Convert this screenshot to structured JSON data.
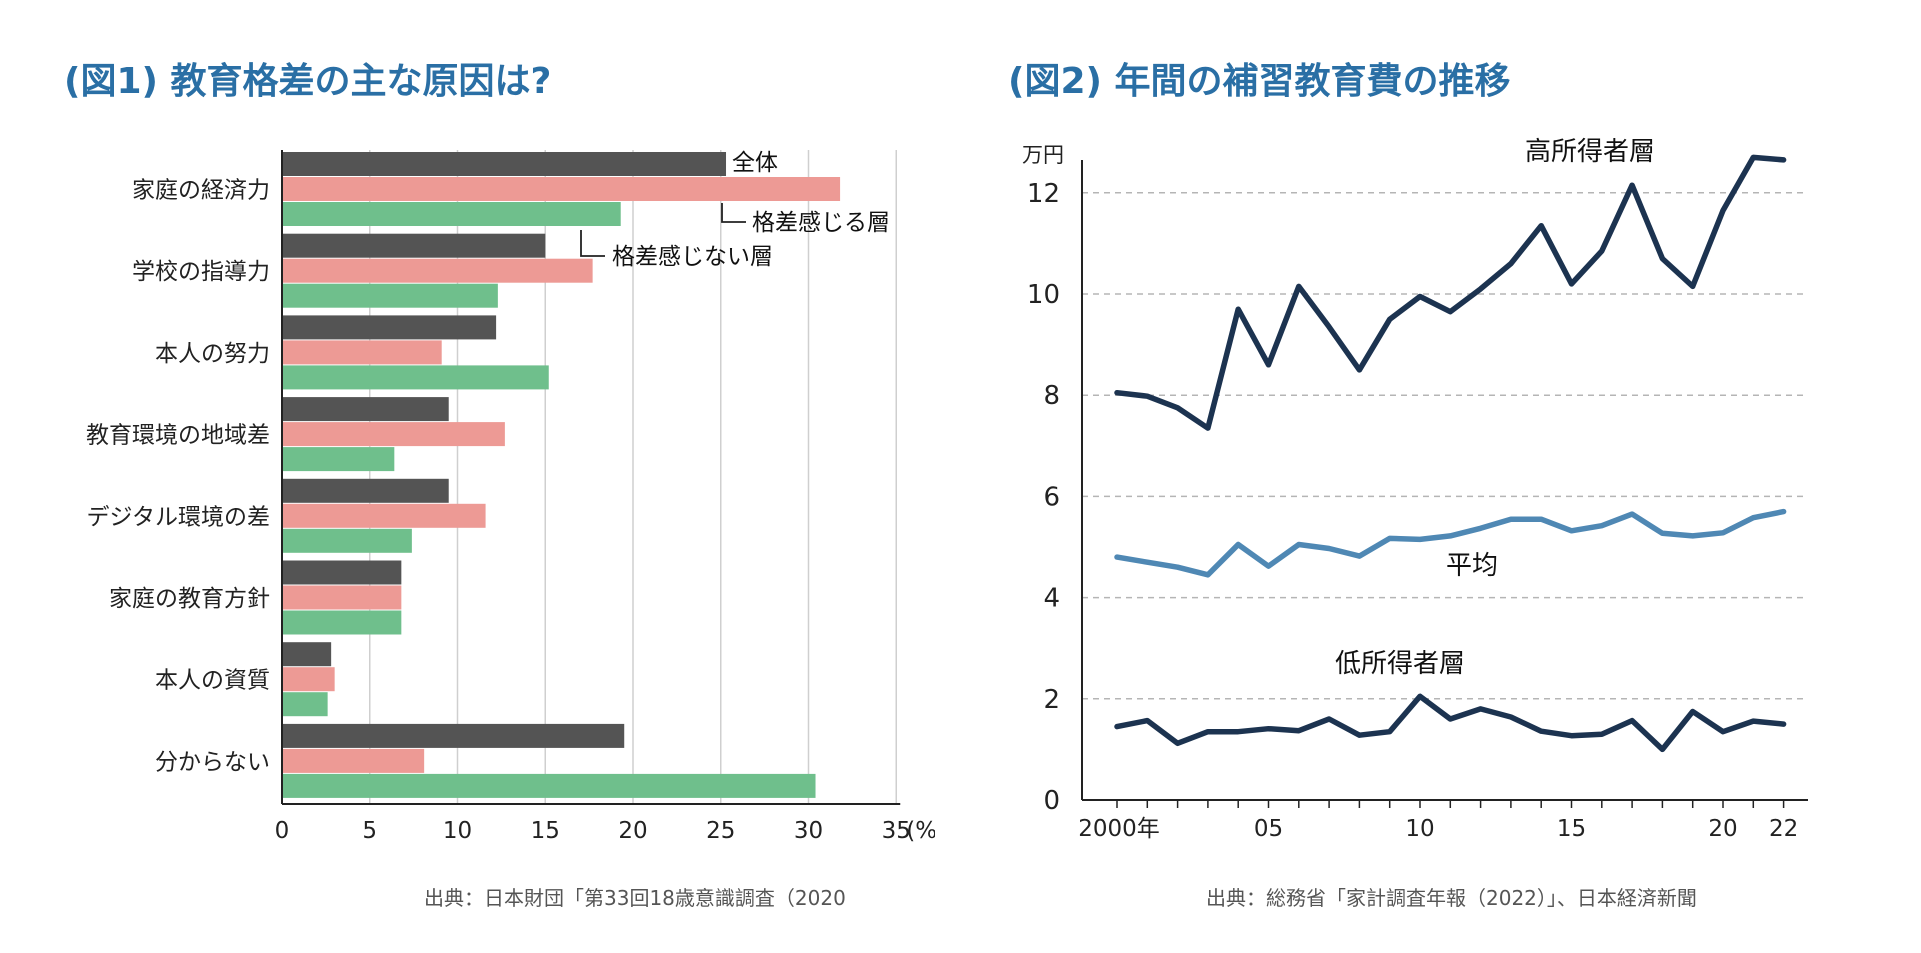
{
  "fig1": {
    "title": "(図1) 教育格差の主な原因は?",
    "source": "出典：日本財団「第33回18歳意識調査（2020",
    "unit_label": "(%",
    "chart_data": {
      "type": "bar",
      "orientation": "horizontal",
      "categories": [
        "家庭の経済力",
        "学校の指導力",
        "本人の努力",
        "教育環境の地域差",
        "デジタル環境の差",
        "家庭の教育方針",
        "本人の資質",
        "分からない"
      ],
      "series": [
        {
          "name": "全体",
          "color": "#545454",
          "values": [
            25.3,
            15.0,
            12.2,
            9.5,
            9.5,
            6.8,
            2.8,
            19.5
          ]
        },
        {
          "name": "格差感じる層",
          "color": "#ed9a95",
          "values": [
            31.8,
            17.7,
            9.1,
            12.7,
            11.6,
            6.8,
            3.0,
            8.1
          ]
        },
        {
          "name": "格差感じない層",
          "color": "#6fbf8c",
          "values": [
            19.3,
            12.3,
            15.2,
            6.4,
            7.4,
            6.8,
            2.6,
            30.4
          ]
        }
      ],
      "xlim": [
        0,
        35
      ],
      "xticks": [
        0,
        5,
        10,
        15,
        20,
        25,
        30,
        35
      ],
      "xtick_labels": [
        "0",
        "5",
        "10",
        "15",
        "20",
        "25",
        "30",
        "35"
      ],
      "grid": true
    }
  },
  "fig2": {
    "title": "(図2) 年間の補習教育費の推移",
    "source": "出典：総務省「家計調査年報（2022）」、日本経済新聞",
    "ylabel": "万円",
    "chart_data": {
      "type": "line",
      "x": [
        2000,
        2001,
        2002,
        2003,
        2004,
        2005,
        2006,
        2007,
        2008,
        2009,
        2010,
        2011,
        2012,
        2013,
        2014,
        2015,
        2016,
        2017,
        2018,
        2019,
        2020,
        2021,
        2022
      ],
      "series": [
        {
          "name": "高所得者層",
          "color": "#1c3350",
          "values": [
            8.05,
            7.98,
            7.75,
            7.35,
            9.7,
            8.6,
            10.15,
            9.35,
            8.5,
            9.5,
            9.95,
            9.65,
            10.1,
            10.6,
            11.35,
            10.2,
            10.85,
            12.15,
            10.7,
            10.15,
            11.65,
            12.7,
            12.65
          ]
        },
        {
          "name": "平均",
          "color": "#4f88b4",
          "values": [
            4.8,
            4.7,
            4.6,
            4.45,
            5.05,
            4.62,
            5.05,
            4.97,
            4.82,
            5.17,
            5.15,
            5.22,
            5.37,
            5.55,
            5.55,
            5.32,
            5.42,
            5.65,
            5.27,
            5.22,
            5.28,
            5.58,
            5.7
          ]
        },
        {
          "name": "低所得者層",
          "color": "#1c3350",
          "values": [
            1.45,
            1.57,
            1.12,
            1.35,
            1.35,
            1.41,
            1.37,
            1.6,
            1.28,
            1.35,
            2.05,
            1.6,
            1.8,
            1.64,
            1.36,
            1.27,
            1.3,
            1.57,
            1.0,
            1.75,
            1.35,
            1.56,
            1.5
          ]
        }
      ],
      "ylim": [
        0,
        13
      ],
      "yticks": [
        0,
        2,
        4,
        6,
        8,
        10,
        12
      ],
      "ytick_labels": [
        "0",
        "2",
        "4",
        "6",
        "8",
        "10",
        "12"
      ],
      "xticks": [
        2000,
        2005,
        2010,
        2015,
        2020,
        2022
      ],
      "xtick_labels": [
        "2000年",
        "05",
        "10",
        "15",
        "20",
        "22"
      ],
      "grid": "dashed-horizontal"
    }
  }
}
